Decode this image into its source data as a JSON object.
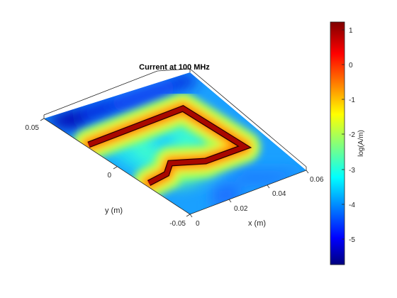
{
  "chart_data": {
    "type": "heatmap",
    "title": "Current at 100 MHz",
    "xlabel": "x (m)",
    "ylabel": "y (m)",
    "x_ticks": [
      "0",
      "0.02",
      "0.04",
      "0.06"
    ],
    "y_ticks": [
      "0.05",
      "0",
      "-0.05"
    ],
    "xlim": [
      0,
      0.06
    ],
    "ylim": [
      -0.05,
      0.05
    ],
    "colorbar": {
      "label": "log(A/m)",
      "ticks": [
        "1",
        "0",
        "-1",
        "-2",
        "-3",
        "-4",
        "-5"
      ],
      "range": [
        -5.7,
        1.2
      ],
      "colormap": "jet"
    },
    "grid": false
  }
}
